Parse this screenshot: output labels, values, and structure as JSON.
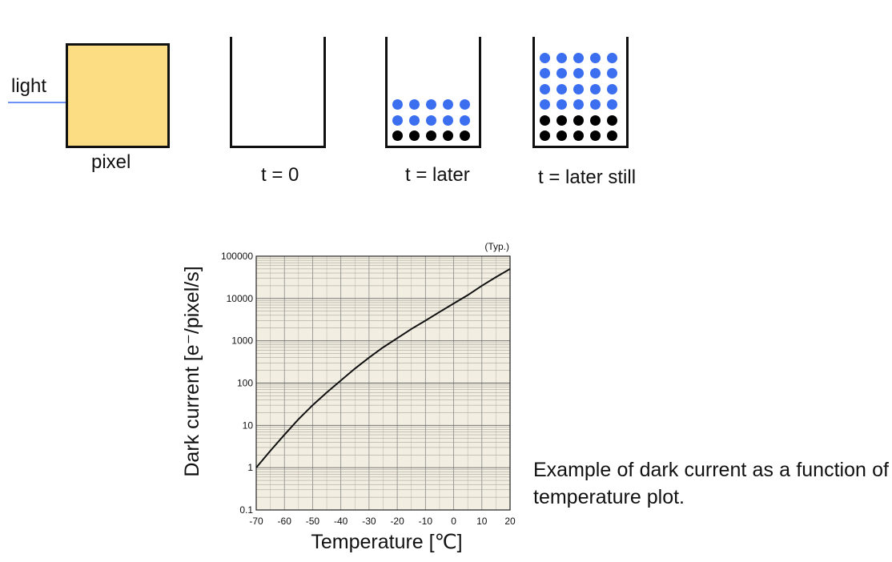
{
  "diagram": {
    "light_label": "light",
    "pixel_label": "pixel",
    "pixel_color": "#fddd84",
    "photon_color": "#3b6ff0",
    "dark_electron_color": "#000000",
    "stages": [
      {
        "label": "t = 0",
        "photon_rows": 0,
        "dark_rows": 0
      },
      {
        "label": "t = later",
        "photon_rows": 2,
        "dark_rows": 1
      },
      {
        "label": "t = later still",
        "photon_rows": 4,
        "dark_rows": 2
      }
    ],
    "dots_per_row": 5
  },
  "chart_data": {
    "type": "line",
    "title": "",
    "annotation": "(Typ.)",
    "xlabel": "Temperature [℃]",
    "ylabel": "Dark current [e⁻/pixel/s]",
    "xlim": [
      -70,
      20
    ],
    "ylim": [
      0.1,
      100000
    ],
    "yscale": "log",
    "x_ticks": [
      "-70",
      "-60",
      "-50",
      "-40",
      "-30",
      "-20",
      "-10",
      "0",
      "10",
      "20"
    ],
    "y_ticks": [
      "0.1",
      "1",
      "10",
      "100",
      "1000",
      "10000",
      "100000"
    ],
    "grid": true,
    "background_color": "#f2eee2",
    "series": [
      {
        "x": [
          -70,
          -65,
          -60,
          -55,
          -50,
          -45,
          -40,
          -35,
          -30,
          -25,
          -20,
          -15,
          -10,
          -5,
          0,
          5,
          10,
          15,
          20
        ],
        "y": [
          1,
          2.5,
          6,
          14,
          30,
          60,
          115,
          220,
          400,
          700,
          1150,
          1900,
          3000,
          4800,
          7600,
          12000,
          20000,
          32000,
          50000
        ]
      }
    ]
  },
  "caption": "Example of dark current as a function of temperature plot."
}
